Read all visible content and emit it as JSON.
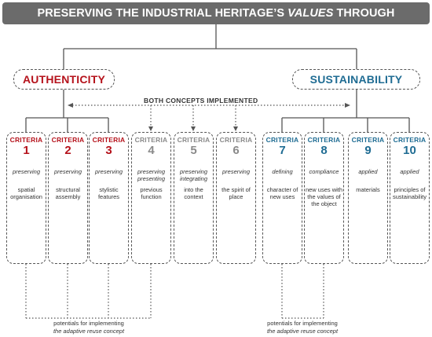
{
  "title": {
    "before": "PRESERVING THE INDUSTRIAL HERITAGE’S",
    "emphasis": "VALUES",
    "after": "THROUGH"
  },
  "concepts": {
    "left": "AUTHENTICITY",
    "right": "SUSTAINABILITY",
    "both": "BOTH CONCEPTS IMPLEMENTED"
  },
  "colors": {
    "authenticity": "#b5121b",
    "sustainability": "#1f6c93",
    "neutral": "#8a8a8a",
    "title_bar": "#6b6b6b"
  },
  "criteria_label": "CRITERIA",
  "criteria": [
    {
      "number": "1",
      "verb": "preserving",
      "object": "spatial organisation"
    },
    {
      "number": "2",
      "verb": "preserving",
      "object": "structural assembly"
    },
    {
      "number": "3",
      "verb": "preserving",
      "object": "stylistic features"
    },
    {
      "number": "4",
      "verb": "preserving presenting",
      "object": "previous function"
    },
    {
      "number": "5",
      "verb": "preserving integrating",
      "object": "into the context"
    },
    {
      "number": "6",
      "verb": "preserving",
      "object": "the spirit of place"
    },
    {
      "number": "7",
      "verb": "defining",
      "object": "character of new uses"
    },
    {
      "number": "8",
      "verb": "compliance",
      "object": "new uses with the values of the object"
    },
    {
      "number": "9",
      "verb": "applied",
      "object": "materials"
    },
    {
      "number": "10",
      "verb": "applied",
      "object": "principles of sustainability"
    }
  ],
  "notes": {
    "left": {
      "line1": "potentials for implementing",
      "line2": "the adaptive reuse concept"
    },
    "right": {
      "line1": "potentials for implementing",
      "line2": "the adaptive reuse concept"
    }
  }
}
